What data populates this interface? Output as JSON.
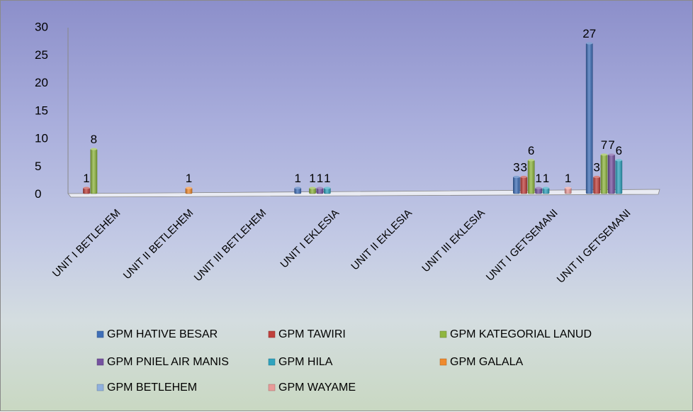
{
  "chart_data": {
    "type": "bar",
    "title": "",
    "xlabel": "",
    "ylabel": "",
    "ylim": [
      0,
      30
    ],
    "yticks": [
      0,
      5,
      10,
      15,
      20,
      25,
      30
    ],
    "grid": false,
    "legend_position": "bottom",
    "categories": [
      "UNIT I BETLEHEM",
      "UNIT II BETLEHEM",
      "UNIT III  BETLEHEM",
      "UNIT I  EKLESIA",
      "UNIT II EKLESIA",
      "UNIT III EKLESIA",
      "UNIT I  GETSEMANI",
      "UNIT II  GETSEMANI"
    ],
    "series": [
      {
        "name": "GPM HATIVE  BESAR",
        "color": "#3f6fb8",
        "values": [
          0,
          0,
          0,
          1,
          0,
          0,
          3,
          27
        ]
      },
      {
        "name": "GPM TAWIRI",
        "color": "#c0413d",
        "values": [
          1,
          0,
          0,
          0,
          0,
          0,
          3,
          3
        ]
      },
      {
        "name": "GPM KATEGORIAL  LANUD",
        "color": "#8fb640",
        "values": [
          8,
          0,
          0,
          1,
          0,
          0,
          6,
          7
        ]
      },
      {
        "name": "GPM PNIEL  AIR MANIS",
        "color": "#7552a0",
        "values": [
          0,
          0,
          0,
          1,
          0,
          0,
          1,
          7
        ]
      },
      {
        "name": "GPM HILA",
        "color": "#2fa3be",
        "values": [
          0,
          0,
          0,
          1,
          0,
          0,
          1,
          6
        ]
      },
      {
        "name": "GPM GALALA",
        "color": "#ef8a2e",
        "values": [
          0,
          1,
          0,
          0,
          0,
          0,
          0,
          0
        ]
      },
      {
        "name": "GPM BETLEHEM",
        "color": "#8fb0de",
        "values": [
          0,
          0,
          0,
          0,
          0,
          0,
          0,
          0
        ]
      },
      {
        "name": "GPM WAYAME",
        "color": "#e89a98",
        "values": [
          0,
          0,
          0,
          0,
          0,
          0,
          1,
          0
        ]
      }
    ]
  }
}
